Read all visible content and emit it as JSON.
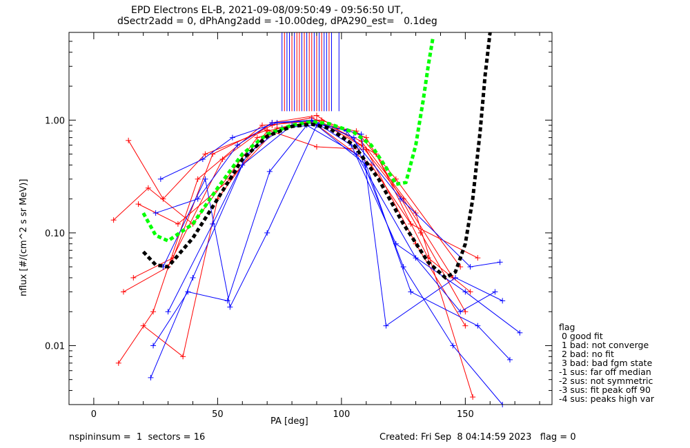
{
  "title": {
    "line1": "EPD Electrons EL-B, 2021-09-08/09:50:49 - 09:56:50 UT,",
    "line2": "dSectr2add = 0, dPhAng2add = -10.00deg, dPA290_est=   0.1deg"
  },
  "footer": {
    "left": "nspininsum =  1  sectors = 16",
    "right": "Created: Fri Sep  8 04:14:59 2023   flag = 0"
  },
  "legend": {
    "title": "flag",
    "items": [
      " 0 good fit",
      " 1 bad: not converge",
      " 2 bad: no fit",
      " 3 bad: bad fgm state",
      "-1 sus: far off median",
      "-2 sus: not symmetric",
      "-3 sus: fit peak off 90",
      "-4 sus: peaks high var"
    ]
  },
  "colors": {
    "red_series": "#ff0000",
    "blue_series": "#0000ff",
    "fit_green": "#00ff00",
    "fit_black": "#000000",
    "axes": "#000000"
  },
  "chart_data": {
    "type": "line",
    "xlabel": "PA [deg]",
    "ylabel": "nflux [#/(cm^2 s sr MeV)]",
    "xlim": [
      -10,
      185
    ],
    "ylim": [
      0.003,
      6.0
    ],
    "yscale": "log",
    "grid": false,
    "x_ticks": [
      0,
      50,
      100,
      150
    ],
    "y_ticks": [
      0.01,
      0.1,
      1.0
    ],
    "y_tick_labels": [
      "0.01",
      "0.10",
      "1.00"
    ],
    "red_profiles_note_values": "approximate representative envelope of many red sector curves",
    "red_profiles": [
      {
        "pa": [
          14,
          28,
          45,
          70,
          90,
          110,
          130,
          150
        ],
        "flux": [
          0.66,
          0.2,
          0.5,
          0.82,
          0.58,
          0.55,
          0.08,
          0.015
        ]
      },
      {
        "pa": [
          10,
          24,
          42,
          68,
          88,
          112,
          128,
          155
        ],
        "flux": [
          0.007,
          0.02,
          0.3,
          0.9,
          0.98,
          0.4,
          0.12,
          0.06
        ]
      },
      {
        "pa": [
          12,
          30,
          52,
          72,
          90,
          108,
          125,
          145
        ],
        "flux": [
          0.03,
          0.05,
          0.45,
          0.95,
          1.1,
          0.6,
          0.2,
          0.04
        ]
      },
      {
        "pa": [
          18,
          34,
          55,
          74,
          92,
          110,
          132,
          150
        ],
        "flux": [
          0.18,
          0.12,
          0.3,
          0.85,
          1.0,
          0.7,
          0.1,
          0.02
        ]
      },
      {
        "pa": [
          8,
          22,
          40,
          66,
          86,
          106,
          122,
          148
        ],
        "flux": [
          0.13,
          0.25,
          0.12,
          0.7,
          0.95,
          0.8,
          0.3,
          0.05
        ]
      },
      {
        "pa": [
          20,
          36,
          50,
          70,
          90,
          114,
          135,
          152
        ],
        "flux": [
          0.015,
          0.008,
          0.2,
          0.8,
          1.0,
          0.5,
          0.06,
          0.03
        ]
      },
      {
        "pa": [
          16,
          32,
          48,
          72,
          88,
          108,
          130,
          153
        ],
        "flux": [
          0.04,
          0.06,
          0.5,
          0.9,
          1.05,
          0.65,
          0.15,
          0.0035
        ]
      }
    ],
    "blue_profiles_note_values": "approximate representative envelope of many blue sector curves",
    "blue_profiles": [
      {
        "pa": [
          23,
          40,
          60,
          80,
          90,
          105,
          125,
          145,
          165
        ],
        "flux": [
          0.0052,
          0.04,
          0.4,
          0.9,
          0.95,
          0.7,
          0.05,
          0.01,
          0.003
        ]
      },
      {
        "pa": [
          25,
          42,
          58,
          72,
          88,
          104,
          122,
          150,
          172
        ],
        "flux": [
          0.15,
          0.2,
          0.6,
          0.95,
          1.0,
          0.6,
          0.08,
          0.03,
          0.013
        ]
      },
      {
        "pa": [
          28,
          45,
          55,
          70,
          90,
          110,
          128,
          155,
          168
        ],
        "flux": [
          0.05,
          0.3,
          0.022,
          0.1,
          0.9,
          0.4,
          0.03,
          0.015,
          0.0075
        ]
      },
      {
        "pa": [
          30,
          48,
          62,
          76,
          92,
          108,
          118,
          146,
          165
        ],
        "flux": [
          0.02,
          0.12,
          0.5,
          0.85,
          0.92,
          0.75,
          0.015,
          0.04,
          0.025
        ]
      },
      {
        "pa": [
          27,
          44,
          56,
          74,
          88,
          102,
          124,
          152,
          164
        ],
        "flux": [
          0.3,
          0.45,
          0.7,
          0.95,
          0.98,
          0.8,
          0.2,
          0.05,
          0.055
        ]
      },
      {
        "pa": [
          24,
          38,
          54,
          71,
          86,
          106,
          130,
          148,
          162
        ],
        "flux": [
          0.01,
          0.03,
          0.025,
          0.35,
          0.9,
          0.5,
          0.06,
          0.02,
          0.03
        ]
      }
    ],
    "vertical_lines_note": "vertical marks near PA 76-99 from y-top down to about y=1.2",
    "vertical_lines_x": [
      76,
      77,
      78,
      79,
      80,
      81,
      82,
      83,
      84,
      85,
      86,
      87,
      88,
      89,
      90,
      91,
      92,
      93,
      94,
      95,
      96,
      99
    ],
    "vertical_lines_color": [
      "blue",
      "red",
      "blue",
      "blue",
      "red",
      "blue",
      "red",
      "red",
      "blue",
      "red",
      "blue",
      "red",
      "red",
      "blue",
      "red",
      "blue",
      "red",
      "blue",
      "blue",
      "red",
      "blue",
      "blue"
    ],
    "fit_green": {
      "name": "",
      "pa": [
        20,
        25,
        30,
        40,
        50,
        60,
        70,
        80,
        88,
        95,
        105,
        112,
        118,
        122,
        126,
        130,
        133,
        135,
        137
      ],
      "flux": [
        0.15,
        0.095,
        0.085,
        0.12,
        0.25,
        0.5,
        0.75,
        0.9,
        0.97,
        0.93,
        0.78,
        0.6,
        0.38,
        0.27,
        0.28,
        0.6,
        1.5,
        3.0,
        5.5
      ]
    },
    "fit_black": {
      "name": "",
      "pa": [
        20,
        25,
        30,
        40,
        50,
        60,
        70,
        80,
        88,
        95,
        105,
        115,
        125,
        135,
        142,
        146,
        150,
        153,
        156,
        158,
        160
      ],
      "flux": [
        0.068,
        0.052,
        0.05,
        0.09,
        0.2,
        0.45,
        0.72,
        0.88,
        0.92,
        0.85,
        0.6,
        0.3,
        0.12,
        0.055,
        0.04,
        0.045,
        0.08,
        0.2,
        0.8,
        2.5,
        6.0
      ]
    }
  }
}
